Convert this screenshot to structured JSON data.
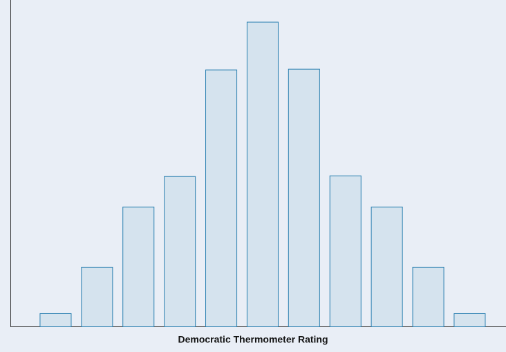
{
  "chart_data": {
    "type": "bar",
    "x_label": "Democratic Thermometer Rating",
    "values": [
      19,
      86,
      173,
      217,
      371,
      440,
      372,
      218,
      173,
      86,
      19
    ],
    "color": "#d5e3ee",
    "edge_color": "#2a7fb0",
    "ylim": [
      0,
      460
    ]
  }
}
